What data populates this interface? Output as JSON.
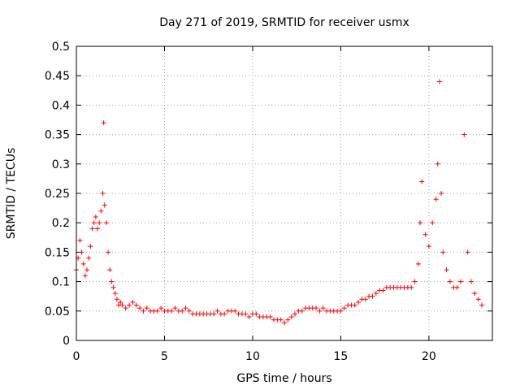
{
  "chart_data": {
    "type": "scatter",
    "title": "Day 271 of 2019, SRMTID for receiver usmx",
    "xlabel": "GPS time / hours",
    "ylabel": "SRMTID / TECUs",
    "xlim": [
      0,
      23.6
    ],
    "ylim": [
      0,
      0.5
    ],
    "xticks": [
      0,
      5,
      10,
      15,
      20
    ],
    "xtick_labels": [
      "0",
      "5",
      "10",
      "15",
      "20"
    ],
    "yticks": [
      0,
      0.05,
      0.1,
      0.15,
      0.2,
      0.25,
      0.3,
      0.35,
      0.4,
      0.45,
      0.5
    ],
    "ytick_labels": [
      "0",
      "0.05",
      "0.1",
      "0.15",
      "0.2",
      "0.25",
      "0.3",
      "0.35",
      "0.4",
      "0.45",
      "0.5"
    ],
    "grid": true,
    "marker": "plus",
    "color": "#ff0000",
    "series": [
      {
        "name": "SRMTID",
        "x": [
          0.0,
          0.1,
          0.2,
          0.3,
          0.4,
          0.5,
          0.6,
          0.7,
          0.8,
          0.9,
          1.0,
          1.1,
          1.2,
          1.3,
          1.4,
          1.5,
          1.55,
          1.6,
          1.7,
          1.8,
          1.9,
          2.0,
          2.1,
          2.2,
          2.3,
          2.4,
          2.5,
          2.6,
          2.8,
          3.0,
          3.2,
          3.4,
          3.6,
          3.8,
          4.0,
          4.2,
          4.4,
          4.6,
          4.8,
          5.0,
          5.2,
          5.4,
          5.6,
          5.8,
          6.0,
          6.2,
          6.4,
          6.6,
          6.8,
          7.0,
          7.2,
          7.4,
          7.6,
          7.8,
          8.0,
          8.2,
          8.4,
          8.6,
          8.8,
          9.0,
          9.2,
          9.4,
          9.6,
          9.8,
          10.0,
          10.2,
          10.4,
          10.6,
          10.8,
          11.0,
          11.2,
          11.4,
          11.6,
          11.8,
          12.0,
          12.2,
          12.4,
          12.6,
          12.8,
          13.0,
          13.2,
          13.4,
          13.6,
          13.8,
          14.0,
          14.2,
          14.4,
          14.6,
          14.8,
          15.0,
          15.2,
          15.4,
          15.6,
          15.8,
          16.0,
          16.2,
          16.4,
          16.6,
          16.8,
          17.0,
          17.2,
          17.4,
          17.6,
          17.8,
          18.0,
          18.2,
          18.4,
          18.6,
          18.8,
          19.0,
          19.2,
          19.4,
          19.5,
          19.6,
          19.8,
          20.0,
          20.2,
          20.4,
          20.5,
          20.6,
          20.7,
          20.8,
          21.0,
          21.2,
          21.4,
          21.6,
          21.8,
          22.0,
          22.2,
          22.4,
          22.6,
          22.8,
          23.0
        ],
        "y": [
          0.12,
          0.14,
          0.17,
          0.15,
          0.13,
          0.11,
          0.12,
          0.14,
          0.16,
          0.19,
          0.2,
          0.21,
          0.19,
          0.2,
          0.22,
          0.25,
          0.37,
          0.23,
          0.2,
          0.15,
          0.12,
          0.1,
          0.09,
          0.08,
          0.07,
          0.06,
          0.065,
          0.06,
          0.055,
          0.06,
          0.065,
          0.06,
          0.055,
          0.05,
          0.055,
          0.05,
          0.05,
          0.05,
          0.055,
          0.05,
          0.05,
          0.05,
          0.055,
          0.05,
          0.05,
          0.055,
          0.05,
          0.045,
          0.045,
          0.045,
          0.045,
          0.045,
          0.045,
          0.045,
          0.05,
          0.045,
          0.045,
          0.05,
          0.05,
          0.05,
          0.045,
          0.045,
          0.045,
          0.04,
          0.045,
          0.045,
          0.04,
          0.04,
          0.04,
          0.04,
          0.035,
          0.035,
          0.035,
          0.03,
          0.035,
          0.04,
          0.045,
          0.05,
          0.05,
          0.055,
          0.055,
          0.055,
          0.055,
          0.05,
          0.055,
          0.05,
          0.05,
          0.05,
          0.05,
          0.05,
          0.055,
          0.06,
          0.06,
          0.06,
          0.065,
          0.07,
          0.07,
          0.075,
          0.075,
          0.08,
          0.085,
          0.085,
          0.09,
          0.09,
          0.09,
          0.09,
          0.09,
          0.09,
          0.09,
          0.09,
          0.1,
          0.13,
          0.2,
          0.27,
          0.18,
          0.16,
          0.2,
          0.24,
          0.3,
          0.44,
          0.25,
          0.15,
          0.12,
          0.1,
          0.09,
          0.09,
          0.1,
          0.35,
          0.15,
          0.1,
          0.08,
          0.07,
          0.06
        ]
      }
    ]
  }
}
